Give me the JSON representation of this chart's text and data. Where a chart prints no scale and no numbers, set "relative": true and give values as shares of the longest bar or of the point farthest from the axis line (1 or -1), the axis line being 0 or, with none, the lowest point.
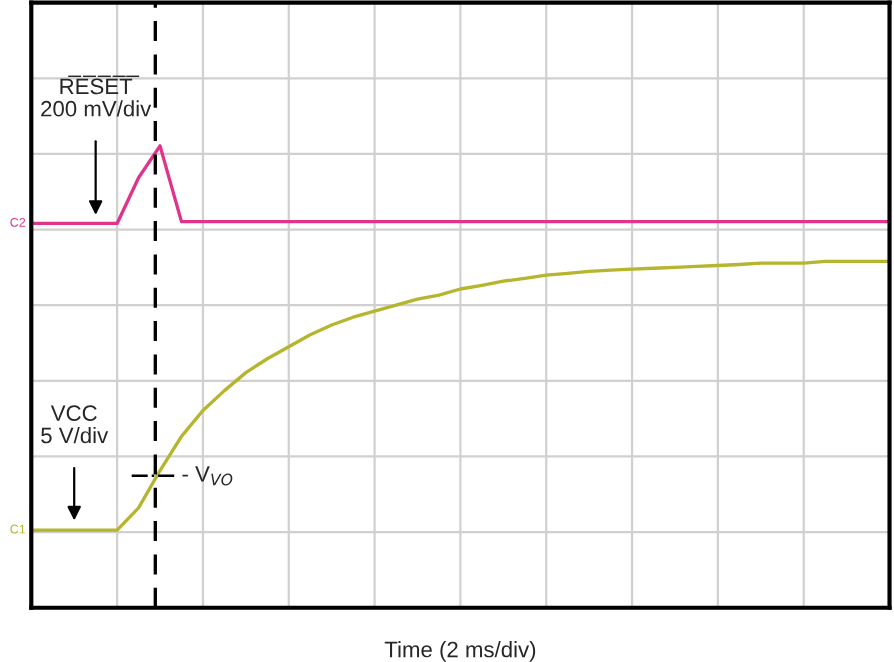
{
  "chart_data": {
    "type": "line",
    "relative": true,
    "xlabel": "Time (2 ms/div)",
    "categories": [
      null,
      null,
      null,
      null,
      null,
      null,
      null,
      null,
      null,
      null,
      null,
      null,
      null,
      null,
      null,
      null,
      null,
      null,
      null,
      null,
      null,
      null,
      null,
      null,
      null,
      null,
      null,
      null,
      null,
      null,
      null,
      null,
      null,
      null,
      null,
      null,
      null,
      null,
      null,
      null,
      null
    ],
    "series": [
      {
        "name": "C2",
        "color": "#e0338a",
        "values": [
          0.832,
          0.832,
          0.832,
          0.832,
          0.832,
          0.931,
          1.0,
          0.836,
          0.836,
          0.836,
          0.836,
          0.836,
          0.836,
          0.836,
          0.836,
          0.836,
          0.836,
          0.836,
          0.836,
          0.836,
          0.836,
          0.836,
          0.836,
          0.836,
          0.836,
          0.836,
          0.836,
          0.836,
          0.836,
          0.836,
          0.836,
          0.836,
          0.836,
          0.836,
          0.836,
          0.836,
          0.836,
          0.836,
          0.836,
          0.836,
          0.836
        ]
      },
      {
        "name": "C1",
        "color": "#b5b52e",
        "values": [
          0.168,
          0.168,
          0.168,
          0.168,
          0.168,
          0.216,
          0.297,
          0.371,
          0.427,
          0.47,
          0.509,
          0.539,
          0.565,
          0.591,
          0.612,
          0.629,
          0.642,
          0.655,
          0.668,
          0.677,
          0.69,
          0.698,
          0.707,
          0.713,
          0.72,
          0.724,
          0.728,
          0.731,
          0.733,
          0.735,
          0.737,
          0.739,
          0.741,
          0.743,
          0.746,
          0.746,
          0.746,
          0.75,
          0.75,
          0.75,
          0.75
        ]
      }
    ],
    "annotations": [
      "R̅E̅S̅E̅T̅\n200 mV/div",
      "VCC\n5 V/div",
      "- V$_{VO}$"
    ],
    "grid": true,
    "legend": false,
    "tick_labels": false,
    "marker": "none",
    "line_style": "solid"
  }
}
